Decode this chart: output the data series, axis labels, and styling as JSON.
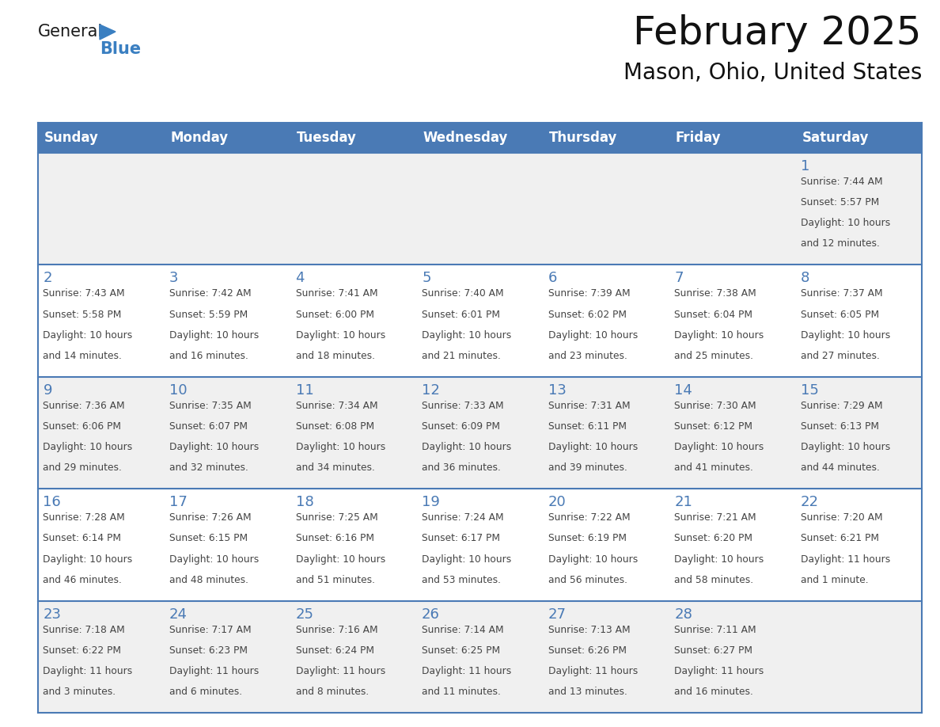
{
  "title": "February 2025",
  "subtitle": "Mason, Ohio, United States",
  "header_bg": "#4a7ab5",
  "header_text_color": "#ffffff",
  "cell_bg_light": "#f0f0f0",
  "cell_bg_white": "#ffffff",
  "day_number_color": "#4a7ab5",
  "info_text_color": "#444444",
  "border_color": "#4a7ab5",
  "grid_line_color": "#cccccc",
  "days_of_week": [
    "Sunday",
    "Monday",
    "Tuesday",
    "Wednesday",
    "Thursday",
    "Friday",
    "Saturday"
  ],
  "weeks": [
    [
      {
        "day": null,
        "sunrise": null,
        "sunset": null,
        "daylight": null
      },
      {
        "day": null,
        "sunrise": null,
        "sunset": null,
        "daylight": null
      },
      {
        "day": null,
        "sunrise": null,
        "sunset": null,
        "daylight": null
      },
      {
        "day": null,
        "sunrise": null,
        "sunset": null,
        "daylight": null
      },
      {
        "day": null,
        "sunrise": null,
        "sunset": null,
        "daylight": null
      },
      {
        "day": null,
        "sunrise": null,
        "sunset": null,
        "daylight": null
      },
      {
        "day": 1,
        "sunrise": "7:44 AM",
        "sunset": "5:57 PM",
        "daylight": "10 hours\nand 12 minutes."
      }
    ],
    [
      {
        "day": 2,
        "sunrise": "7:43 AM",
        "sunset": "5:58 PM",
        "daylight": "10 hours\nand 14 minutes."
      },
      {
        "day": 3,
        "sunrise": "7:42 AM",
        "sunset": "5:59 PM",
        "daylight": "10 hours\nand 16 minutes."
      },
      {
        "day": 4,
        "sunrise": "7:41 AM",
        "sunset": "6:00 PM",
        "daylight": "10 hours\nand 18 minutes."
      },
      {
        "day": 5,
        "sunrise": "7:40 AM",
        "sunset": "6:01 PM",
        "daylight": "10 hours\nand 21 minutes."
      },
      {
        "day": 6,
        "sunrise": "7:39 AM",
        "sunset": "6:02 PM",
        "daylight": "10 hours\nand 23 minutes."
      },
      {
        "day": 7,
        "sunrise": "7:38 AM",
        "sunset": "6:04 PM",
        "daylight": "10 hours\nand 25 minutes."
      },
      {
        "day": 8,
        "sunrise": "7:37 AM",
        "sunset": "6:05 PM",
        "daylight": "10 hours\nand 27 minutes."
      }
    ],
    [
      {
        "day": 9,
        "sunrise": "7:36 AM",
        "sunset": "6:06 PM",
        "daylight": "10 hours\nand 29 minutes."
      },
      {
        "day": 10,
        "sunrise": "7:35 AM",
        "sunset": "6:07 PM",
        "daylight": "10 hours\nand 32 minutes."
      },
      {
        "day": 11,
        "sunrise": "7:34 AM",
        "sunset": "6:08 PM",
        "daylight": "10 hours\nand 34 minutes."
      },
      {
        "day": 12,
        "sunrise": "7:33 AM",
        "sunset": "6:09 PM",
        "daylight": "10 hours\nand 36 minutes."
      },
      {
        "day": 13,
        "sunrise": "7:31 AM",
        "sunset": "6:11 PM",
        "daylight": "10 hours\nand 39 minutes."
      },
      {
        "day": 14,
        "sunrise": "7:30 AM",
        "sunset": "6:12 PM",
        "daylight": "10 hours\nand 41 minutes."
      },
      {
        "day": 15,
        "sunrise": "7:29 AM",
        "sunset": "6:13 PM",
        "daylight": "10 hours\nand 44 minutes."
      }
    ],
    [
      {
        "day": 16,
        "sunrise": "7:28 AM",
        "sunset": "6:14 PM",
        "daylight": "10 hours\nand 46 minutes."
      },
      {
        "day": 17,
        "sunrise": "7:26 AM",
        "sunset": "6:15 PM",
        "daylight": "10 hours\nand 48 minutes."
      },
      {
        "day": 18,
        "sunrise": "7:25 AM",
        "sunset": "6:16 PM",
        "daylight": "10 hours\nand 51 minutes."
      },
      {
        "day": 19,
        "sunrise": "7:24 AM",
        "sunset": "6:17 PM",
        "daylight": "10 hours\nand 53 minutes."
      },
      {
        "day": 20,
        "sunrise": "7:22 AM",
        "sunset": "6:19 PM",
        "daylight": "10 hours\nand 56 minutes."
      },
      {
        "day": 21,
        "sunrise": "7:21 AM",
        "sunset": "6:20 PM",
        "daylight": "10 hours\nand 58 minutes."
      },
      {
        "day": 22,
        "sunrise": "7:20 AM",
        "sunset": "6:21 PM",
        "daylight": "11 hours\nand 1 minute."
      }
    ],
    [
      {
        "day": 23,
        "sunrise": "7:18 AM",
        "sunset": "6:22 PM",
        "daylight": "11 hours\nand 3 minutes."
      },
      {
        "day": 24,
        "sunrise": "7:17 AM",
        "sunset": "6:23 PM",
        "daylight": "11 hours\nand 6 minutes."
      },
      {
        "day": 25,
        "sunrise": "7:16 AM",
        "sunset": "6:24 PM",
        "daylight": "11 hours\nand 8 minutes."
      },
      {
        "day": 26,
        "sunrise": "7:14 AM",
        "sunset": "6:25 PM",
        "daylight": "11 hours\nand 11 minutes."
      },
      {
        "day": 27,
        "sunrise": "7:13 AM",
        "sunset": "6:26 PM",
        "daylight": "11 hours\nand 13 minutes."
      },
      {
        "day": 28,
        "sunrise": "7:11 AM",
        "sunset": "6:27 PM",
        "daylight": "11 hours\nand 16 minutes."
      },
      {
        "day": null,
        "sunrise": null,
        "sunset": null,
        "daylight": null
      }
    ]
  ],
  "logo_general_color": "#1a1a1a",
  "logo_blue_color": "#3a7fc1",
  "logo_triangle_color": "#3a7fc1",
  "fig_width": 11.88,
  "fig_height": 9.18,
  "dpi": 100
}
